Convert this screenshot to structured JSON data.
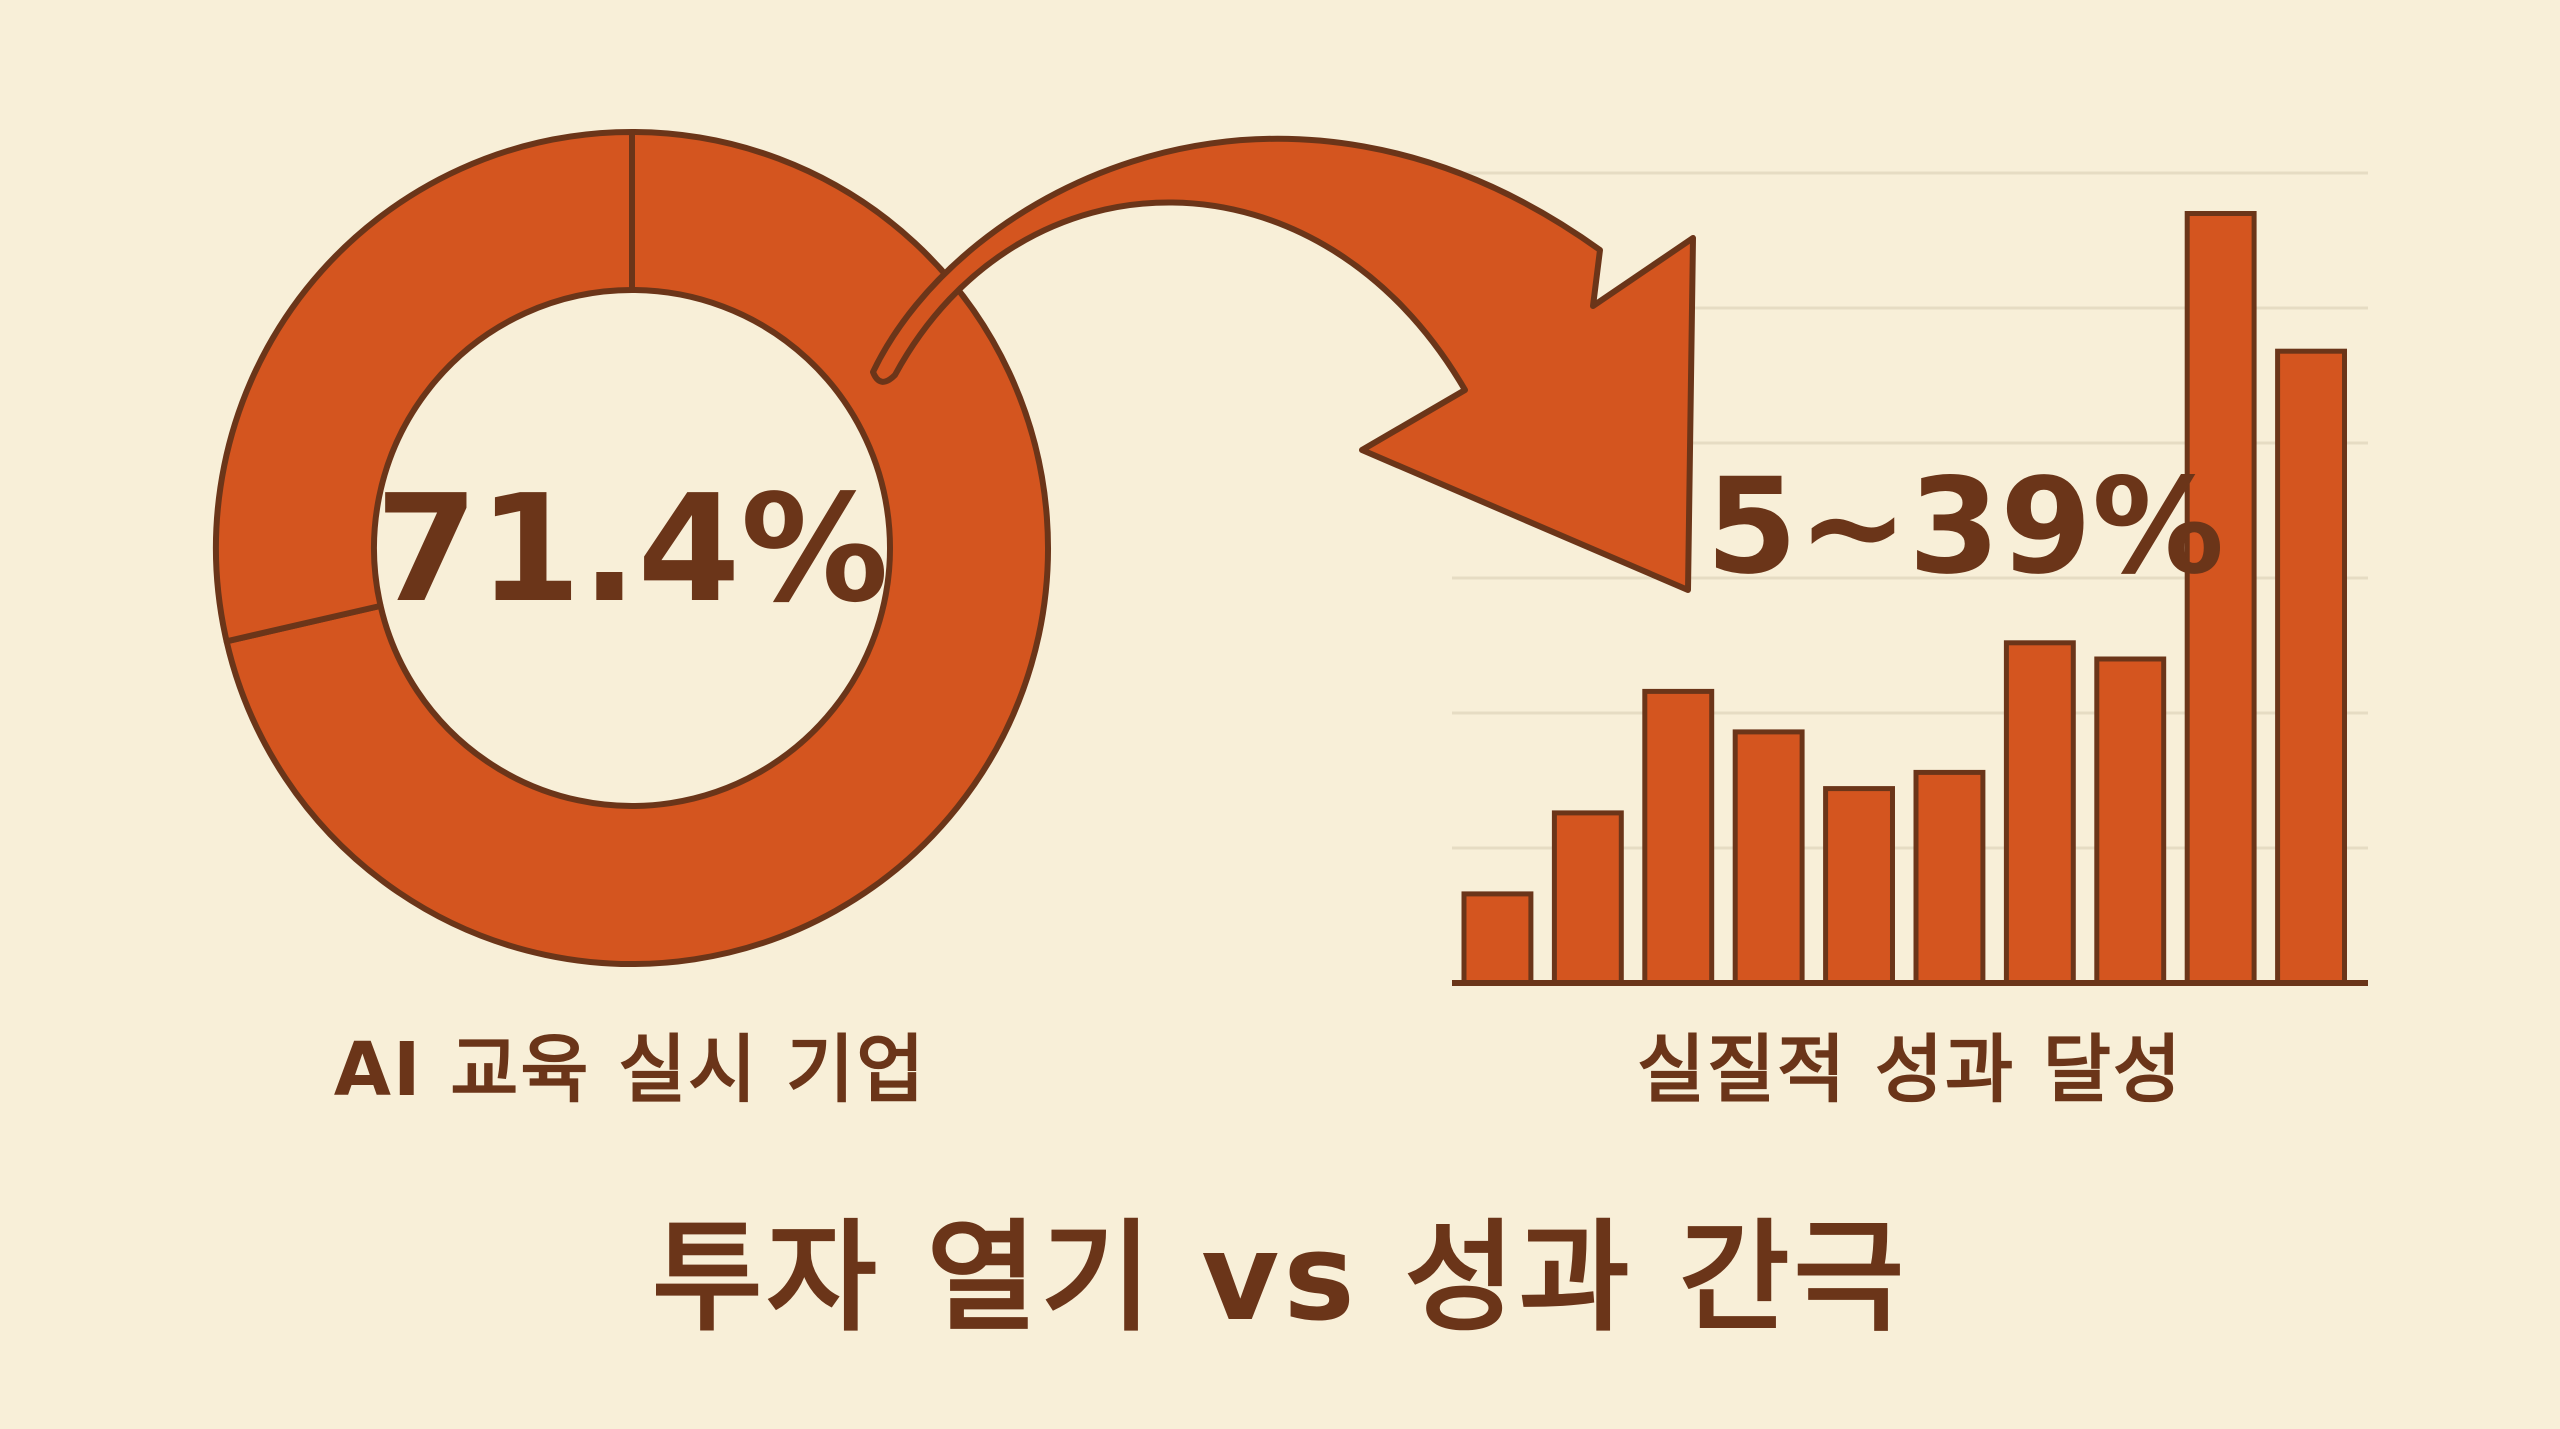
{
  "colors": {
    "background": "#f8efd8",
    "fill": "#d4551f",
    "outline": "#6b3519",
    "text": "#6b3519",
    "grid": "#e6dcc3"
  },
  "chart_data": [
    {
      "type": "pie",
      "variant": "donut",
      "center_label": "71.4%",
      "values": [
        71.4,
        28.6
      ],
      "caption": "AI 교육 실시 기업"
    },
    {
      "type": "bar",
      "annotation": "5~39%",
      "values": [
        11,
        21,
        36,
        31,
        24,
        26,
        42,
        40,
        95,
        78
      ],
      "ylim": [
        0,
        100
      ],
      "grid": true,
      "caption": "실질적 성과 달성"
    }
  ],
  "title": "투자 열기 vs 성과 간극"
}
